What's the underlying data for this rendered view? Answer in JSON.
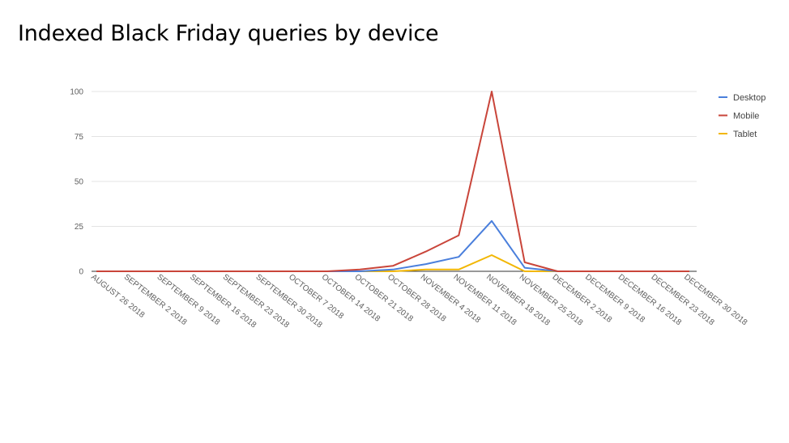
{
  "title": "Indexed Black Friday queries by device",
  "chart_data": {
    "type": "line",
    "title": "Indexed Black Friday queries by device",
    "xlabel": "",
    "ylabel": "",
    "ylim": [
      0,
      100
    ],
    "yticks": [
      0,
      25,
      50,
      75,
      100
    ],
    "grid": true,
    "legend_position": "right",
    "categories": [
      "AUGUST 26 2018",
      "SEPTEMBER 2 2018",
      "SEPTEMBER 9 2018",
      "SEPTEMBER 16 2018",
      "SEPTEMBER 23 2018",
      "SEPTEMBER 30 2018",
      "OCTOBER 7 2018",
      "OCTOBER 14 2018",
      "OCTOBER 21 2018",
      "OCTOBER 28 2018",
      "NOVEMBER 4 2018",
      "NOVEMBER 11 2018",
      "NOVEMBER 18 2018",
      "NOVEMBER 25 2018",
      "DECEMBER 2 2018",
      "DECEMBER 9 2018",
      "DECEMBER 16 2018",
      "DECEMBER 23 2018",
      "DECEMBER 30 2018"
    ],
    "series": [
      {
        "name": "Desktop",
        "color": "#4a7fdc",
        "values": [
          0,
          0,
          0,
          0,
          0,
          0,
          0,
          0,
          0,
          1,
          4,
          8,
          28,
          2,
          0,
          0,
          0,
          0,
          0
        ]
      },
      {
        "name": "Mobile",
        "color": "#c9453a",
        "values": [
          0,
          0,
          0,
          0,
          0,
          0,
          0,
          0,
          1,
          3,
          11,
          20,
          100,
          5,
          0,
          0,
          0,
          0,
          0
        ]
      },
      {
        "name": "Tablet",
        "color": "#f2b705",
        "values": [
          0,
          0,
          0,
          0,
          0,
          0,
          0,
          0,
          0,
          0,
          1,
          1,
          9,
          0,
          0,
          0,
          0,
          0,
          0
        ]
      }
    ]
  }
}
